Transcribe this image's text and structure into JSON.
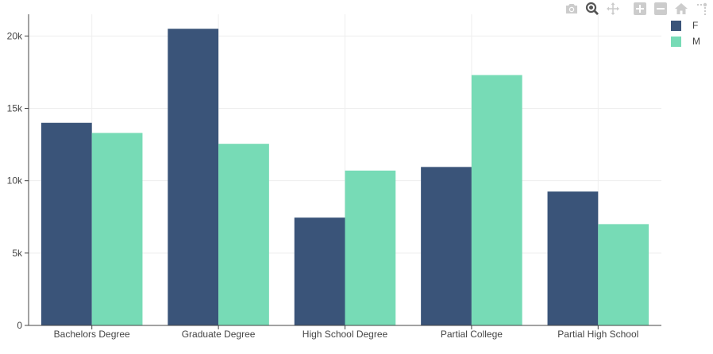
{
  "chart_data": {
    "type": "bar",
    "barmode": "group",
    "categories": [
      "Bachelors Degree",
      "Graduate Degree",
      "High School Degree",
      "Partial College",
      "Partial High School"
    ],
    "series": [
      {
        "name": "F",
        "values": [
          14000,
          20500,
          7450,
          10950,
          9250
        ]
      },
      {
        "name": "M",
        "values": [
          13300,
          12550,
          10700,
          17300,
          7000
        ]
      }
    ],
    "ylim": [
      0,
      21500
    ],
    "yticks": [
      0,
      5000,
      10000,
      15000,
      20000
    ],
    "ytick_labels": [
      "0",
      "5k",
      "10k",
      "15k",
      "20k"
    ],
    "grid": true,
    "legend": "top-right",
    "title": "",
    "xlabel": "",
    "ylabel": ""
  },
  "colors": {
    "F": "#3a5479",
    "M": "#77dbb6",
    "grid": "#eeeeee",
    "axis": "#444444"
  },
  "modebar": {
    "icons": [
      "camera-icon",
      "zoom-icon",
      "pan-icon",
      "zoom-in-icon",
      "zoom-out-icon",
      "home-icon",
      "spikelines-icon"
    ]
  }
}
